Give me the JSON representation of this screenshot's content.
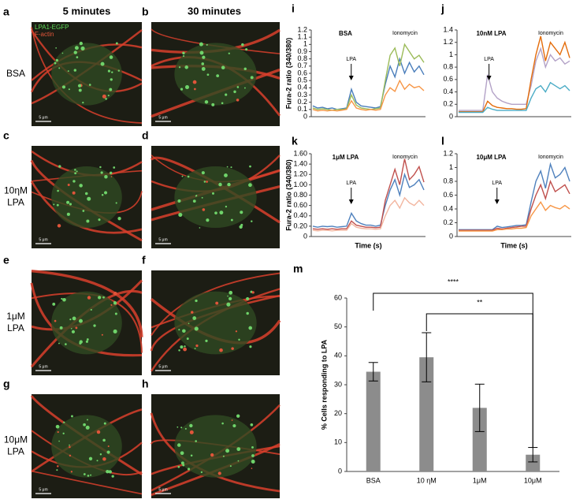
{
  "figure": {
    "panels": [
      "a",
      "b",
      "c",
      "d",
      "e",
      "f",
      "g",
      "h"
    ],
    "columns": [
      "5 minutes",
      "30 minutes"
    ],
    "rows": [
      [
        "BSA"
      ],
      [
        "10ηM",
        "LPA"
      ],
      [
        "1μM",
        "LPA"
      ],
      [
        "10μM",
        "LPA"
      ]
    ],
    "stain_labels": [
      "LPA1-EGFP",
      "F-actin"
    ],
    "scale_bars": [
      "5 μm",
      "5 μm",
      "5 μm",
      "5 μm",
      "5 μm",
      "5 μm",
      "5 μm",
      "5 μm"
    ]
  },
  "chart_data": [
    {
      "type": "line",
      "panel": "i",
      "title": "BSA",
      "ylabel": "Fura-2 ratio (340/380)",
      "annotations": [
        "LPA",
        "Ionomycin"
      ],
      "ylim": [
        0,
        1.2
      ],
      "yticks": [
        0,
        0.1,
        0.2,
        0.3,
        0.4,
        0.5,
        0.6,
        0.7,
        0.8,
        0.9,
        1,
        1.1,
        1.2
      ],
      "series": [
        {
          "color": "#4a7ebb",
          "values": [
            0.15,
            0.12,
            0.13,
            0.11,
            0.12,
            0.1,
            0.11,
            0.12,
            0.38,
            0.2,
            0.15,
            0.14,
            0.13,
            0.12,
            0.14,
            0.45,
            0.7,
            0.55,
            0.8,
            0.6,
            0.75,
            0.62,
            0.7,
            0.58
          ]
        },
        {
          "color": "#9bbb59",
          "values": [
            0.12,
            0.1,
            0.11,
            0.1,
            0.09,
            0.1,
            0.1,
            0.11,
            0.3,
            0.16,
            0.12,
            0.11,
            0.1,
            0.11,
            0.12,
            0.5,
            0.85,
            0.95,
            0.7,
            1.0,
            0.9,
            0.8,
            0.85,
            0.75
          ]
        },
        {
          "color": "#f79646",
          "values": [
            0.1,
            0.08,
            0.09,
            0.08,
            0.09,
            0.08,
            0.09,
            0.1,
            0.22,
            0.12,
            0.1,
            0.09,
            0.1,
            0.09,
            0.1,
            0.3,
            0.4,
            0.35,
            0.5,
            0.38,
            0.45,
            0.4,
            0.42,
            0.36
          ]
        }
      ]
    },
    {
      "type": "line",
      "panel": "j",
      "title": "10nM LPA",
      "annotations": [
        "LPA",
        "Ionomycin"
      ],
      "ylim": [
        0,
        1.4
      ],
      "yticks": [
        0,
        0.2,
        0.4,
        0.6,
        0.8,
        1,
        1.2,
        1.4
      ],
      "series": [
        {
          "color": "#b3a2c7",
          "values": [
            0.1,
            0.1,
            0.1,
            0.1,
            0.1,
            0.1,
            0.68,
            0.4,
            0.3,
            0.25,
            0.22,
            0.2,
            0.2,
            0.2,
            0.2,
            0.5,
            0.9,
            1.1,
            0.8,
            1.0,
            0.9,
            0.95,
            0.85,
            0.9
          ]
        },
        {
          "color": "#e46c0a",
          "values": [
            0.08,
            0.08,
            0.08,
            0.08,
            0.08,
            0.08,
            0.25,
            0.18,
            0.15,
            0.14,
            0.13,
            0.13,
            0.12,
            0.12,
            0.13,
            0.6,
            1.0,
            1.3,
            0.9,
            1.2,
            1.1,
            1.0,
            1.2,
            0.95
          ]
        },
        {
          "color": "#4bacc6",
          "values": [
            0.07,
            0.07,
            0.07,
            0.07,
            0.07,
            0.07,
            0.15,
            0.12,
            0.1,
            0.1,
            0.1,
            0.1,
            0.1,
            0.1,
            0.1,
            0.3,
            0.45,
            0.5,
            0.4,
            0.55,
            0.5,
            0.45,
            0.5,
            0.42
          ]
        }
      ]
    },
    {
      "type": "line",
      "panel": "k",
      "title": "1μM LPA",
      "ylabel": "Fura-2 ratio (340/380)",
      "xlabel": "Time (s)",
      "annotations": [
        "LPA",
        "Ionomycin"
      ],
      "ylim": [
        0,
        1.6
      ],
      "yticks": [
        0,
        {
          "value": 0.2,
          "label": "0.20"
        },
        {
          "value": 0.4,
          "label": "0.40"
        },
        {
          "value": 0.6,
          "label": "0.60"
        },
        {
          "value": 0.8,
          "label": "0.80"
        },
        {
          "value": 1,
          "label": "1.00"
        },
        {
          "value": 1.2,
          "label": "1.20"
        },
        {
          "value": 1.4,
          "label": "1.40"
        },
        {
          "value": 1.6,
          "label": "1.60"
        }
      ],
      "series": [
        {
          "color": "#4f81bd",
          "values": [
            0.2,
            0.18,
            0.2,
            0.19,
            0.2,
            0.18,
            0.19,
            0.2,
            0.45,
            0.3,
            0.25,
            0.22,
            0.22,
            0.2,
            0.22,
            0.6,
            0.9,
            1.1,
            0.8,
            1.2,
            0.95,
            1.0,
            1.1,
            0.9
          ]
        },
        {
          "color": "#c0504d",
          "values": [
            0.15,
            0.14,
            0.15,
            0.14,
            0.15,
            0.14,
            0.15,
            0.15,
            0.3,
            0.22,
            0.2,
            0.18,
            0.18,
            0.17,
            0.18,
            0.7,
            1.0,
            1.3,
            1.0,
            1.5,
            1.1,
            1.2,
            1.35,
            1.05
          ]
        },
        {
          "color": "#f2b6a0",
          "values": [
            0.12,
            0.11,
            0.12,
            0.12,
            0.11,
            0.12,
            0.12,
            0.12,
            0.25,
            0.18,
            0.16,
            0.15,
            0.15,
            0.14,
            0.15,
            0.4,
            0.6,
            0.7,
            0.55,
            0.75,
            0.65,
            0.6,
            0.7,
            0.6
          ]
        }
      ]
    },
    {
      "type": "line",
      "panel": "l",
      "title": "10μM LPA",
      "xlabel": "Time (s)",
      "annotations": [
        "LPA",
        "Ionomycin"
      ],
      "ylim": [
        0,
        1.2
      ],
      "yticks": [
        0,
        0.2,
        0.4,
        0.6,
        0.8,
        1,
        1.2
      ],
      "series": [
        {
          "color": "#4f81bd",
          "values": [
            0.1,
            0.1,
            0.1,
            0.1,
            0.1,
            0.1,
            0.1,
            0.1,
            0.15,
            0.13,
            0.14,
            0.15,
            0.16,
            0.16,
            0.17,
            0.5,
            0.8,
            0.95,
            0.7,
            1.05,
            0.85,
            0.9,
            1.0,
            0.8
          ]
        },
        {
          "color": "#c0504d",
          "values": [
            0.09,
            0.09,
            0.09,
            0.09,
            0.09,
            0.09,
            0.09,
            0.09,
            0.12,
            0.11,
            0.12,
            0.13,
            0.14,
            0.15,
            0.15,
            0.4,
            0.6,
            0.75,
            0.55,
            0.8,
            0.65,
            0.7,
            0.75,
            0.62
          ]
        },
        {
          "color": "#f79646",
          "values": [
            0.08,
            0.08,
            0.08,
            0.08,
            0.08,
            0.08,
            0.08,
            0.08,
            0.1,
            0.1,
            0.11,
            0.11,
            0.12,
            0.12,
            0.13,
            0.3,
            0.4,
            0.5,
            0.38,
            0.45,
            0.42,
            0.4,
            0.45,
            0.4
          ]
        }
      ]
    },
    {
      "type": "bar",
      "panel": "m",
      "ylabel": "% Cells responding to LPA",
      "annotations": [
        "****",
        "**"
      ],
      "categories": [
        "BSA",
        "10 ηM",
        "1μM",
        "10μM"
      ],
      "values": [
        34.5,
        39.5,
        22,
        5.8
      ],
      "errors": [
        3.2,
        8.5,
        8.2,
        2.5
      ],
      "color": "#8c8c8c",
      "ylim": [
        0,
        60
      ],
      "yticks": [
        0,
        10,
        20,
        30,
        40,
        50,
        60
      ]
    }
  ]
}
